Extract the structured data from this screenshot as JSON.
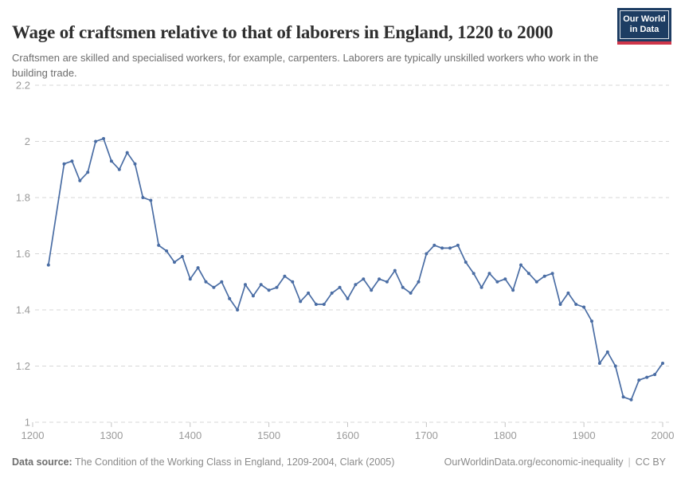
{
  "header": {
    "title": "Wage of craftsmen relative to that of laborers in England, 1220 to 2000",
    "subtitle": "Craftsmen are skilled and specialised workers, for example, carpenters. Laborers are typically unskilled workers who work in the building trade."
  },
  "logo": {
    "line1": "Our World",
    "line2": "in Data",
    "bg_color": "#1d3d63",
    "accent_color": "#cf364a"
  },
  "footer": {
    "source_label": "Data source:",
    "source_text": " The Condition of the Working Class in England, 1209-2004, Clark (2005)",
    "link_text": "OurWorldinData.org/economic-inequality",
    "separator": "|",
    "license": "CC BY"
  },
  "chart_data": {
    "type": "line",
    "title": "Wage of craftsmen relative to that of laborers in England, 1220 to 2000",
    "xlabel": "",
    "ylabel": "",
    "x": [
      1220,
      1240,
      1250,
      1260,
      1270,
      1280,
      1290,
      1300,
      1310,
      1320,
      1330,
      1340,
      1350,
      1360,
      1370,
      1380,
      1390,
      1400,
      1410,
      1420,
      1430,
      1440,
      1450,
      1460,
      1470,
      1480,
      1490,
      1500,
      1510,
      1520,
      1530,
      1540,
      1550,
      1560,
      1570,
      1580,
      1590,
      1600,
      1610,
      1620,
      1630,
      1640,
      1650,
      1660,
      1670,
      1680,
      1690,
      1700,
      1710,
      1720,
      1730,
      1740,
      1750,
      1760,
      1770,
      1780,
      1790,
      1800,
      1810,
      1820,
      1830,
      1840,
      1850,
      1860,
      1870,
      1880,
      1890,
      1900,
      1910,
      1920,
      1930,
      1940,
      1950,
      1960,
      1970,
      1980,
      1990,
      2000
    ],
    "values": [
      1.56,
      1.92,
      1.93,
      1.86,
      1.89,
      2.0,
      2.01,
      1.93,
      1.9,
      1.96,
      1.92,
      1.8,
      1.79,
      1.63,
      1.61,
      1.57,
      1.59,
      1.51,
      1.55,
      1.5,
      1.48,
      1.5,
      1.44,
      1.4,
      1.49,
      1.45,
      1.49,
      1.47,
      1.48,
      1.52,
      1.5,
      1.43,
      1.46,
      1.42,
      1.42,
      1.46,
      1.48,
      1.44,
      1.49,
      1.51,
      1.47,
      1.51,
      1.5,
      1.54,
      1.48,
      1.46,
      1.5,
      1.6,
      1.63,
      1.62,
      1.62,
      1.63,
      1.57,
      1.53,
      1.48,
      1.53,
      1.5,
      1.51,
      1.47,
      1.56,
      1.53,
      1.5,
      1.52,
      1.53,
      1.42,
      1.46,
      1.42,
      1.41,
      1.36,
      1.21,
      1.25,
      1.2,
      1.09,
      1.08,
      1.15,
      1.16,
      1.17,
      1.21
    ],
    "x_ticks": [
      1200,
      1300,
      1400,
      1500,
      1600,
      1700,
      1800,
      1900,
      2000
    ],
    "y_ticks": [
      1,
      1.2,
      1.4,
      1.6,
      1.8,
      2,
      2.2
    ],
    "xlim": [
      1200,
      2010
    ],
    "ylim": [
      1,
      2.2
    ],
    "grid": "horizontal-dashed",
    "legend": "none",
    "line_color": "#4a6da4",
    "marker": "circle"
  }
}
